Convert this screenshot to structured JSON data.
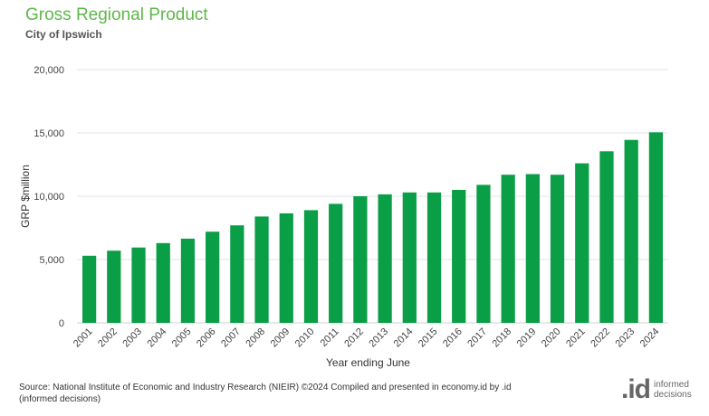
{
  "header": {
    "title": "Gross Regional Product",
    "subtitle": "City of Ipswich"
  },
  "chart_data": {
    "type": "bar",
    "title": "Gross Regional Product",
    "subtitle": "City of Ipswich",
    "xlabel": "Year ending June",
    "ylabel": "GRP $million",
    "categories": [
      "2001",
      "2002",
      "2003",
      "2004",
      "2005",
      "2006",
      "2007",
      "2008",
      "2009",
      "2010",
      "2011",
      "2012",
      "2013",
      "2014",
      "2015",
      "2016",
      "2017",
      "2018",
      "2019",
      "2020",
      "2021",
      "2022",
      "2023",
      "2024"
    ],
    "values": [
      5300,
      5700,
      5950,
      6300,
      6650,
      7200,
      7700,
      8400,
      8650,
      8900,
      9400,
      10000,
      10150,
      10300,
      10300,
      10500,
      10900,
      11700,
      11750,
      11700,
      12600,
      13550,
      14450,
      15050
    ],
    "yticks": [
      0,
      5000,
      10000,
      15000,
      20000
    ],
    "ytick_labels": [
      "0",
      "5,000",
      "10,000",
      "15,000",
      "20,000"
    ],
    "ylim": [
      0,
      20000
    ],
    "grid": true,
    "bar_color": "#0a9e47",
    "grid_color": "#e3e3e3"
  },
  "footer": {
    "source": "Source: National Institute of Economic and Industry Research (NIEIR) ©2024 Compiled and presented in economy.id by .id (informed decisions)",
    "logo_mark": ".id",
    "logo_text": "informed decisions"
  }
}
